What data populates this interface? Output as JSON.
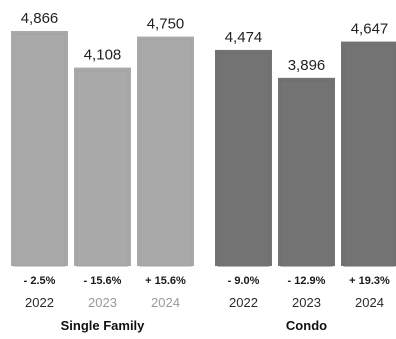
{
  "chart_data": {
    "type": "bar",
    "groups": [
      {
        "name": "Single Family",
        "bar_color": "#a9a9a9",
        "inner_color": "#a3a3a3",
        "bars": [
          {
            "year": "2022",
            "value": 4866,
            "value_label": "4,866",
            "change": "- 2.5%",
            "year_color": "#2b2b2b"
          },
          {
            "year": "2023",
            "value": 4108,
            "value_label": "4,108",
            "change": "- 15.6%",
            "year_color": "#9a9a9a"
          },
          {
            "year": "2024",
            "value": 4750,
            "value_label": "4,750",
            "change": "+ 15.6%",
            "year_color": "#9a9a9a"
          }
        ]
      },
      {
        "name": "Condo",
        "bar_color": "#737373",
        "inner_color": "#6d6d6d",
        "bars": [
          {
            "year": "2022",
            "value": 4474,
            "value_label": "4,474",
            "change": "- 9.0%",
            "year_color": "#2b2b2b"
          },
          {
            "year": "2023",
            "value": 3896,
            "value_label": "3,896",
            "change": "- 12.9%",
            "year_color": "#2b2b2b"
          },
          {
            "year": "2024",
            "value": 4647,
            "value_label": "4,647",
            "change": "+ 19.3%",
            "year_color": "#2b2b2b"
          }
        ]
      }
    ],
    "ylim": [
      0,
      4866
    ],
    "grid": false,
    "legend": "none"
  }
}
